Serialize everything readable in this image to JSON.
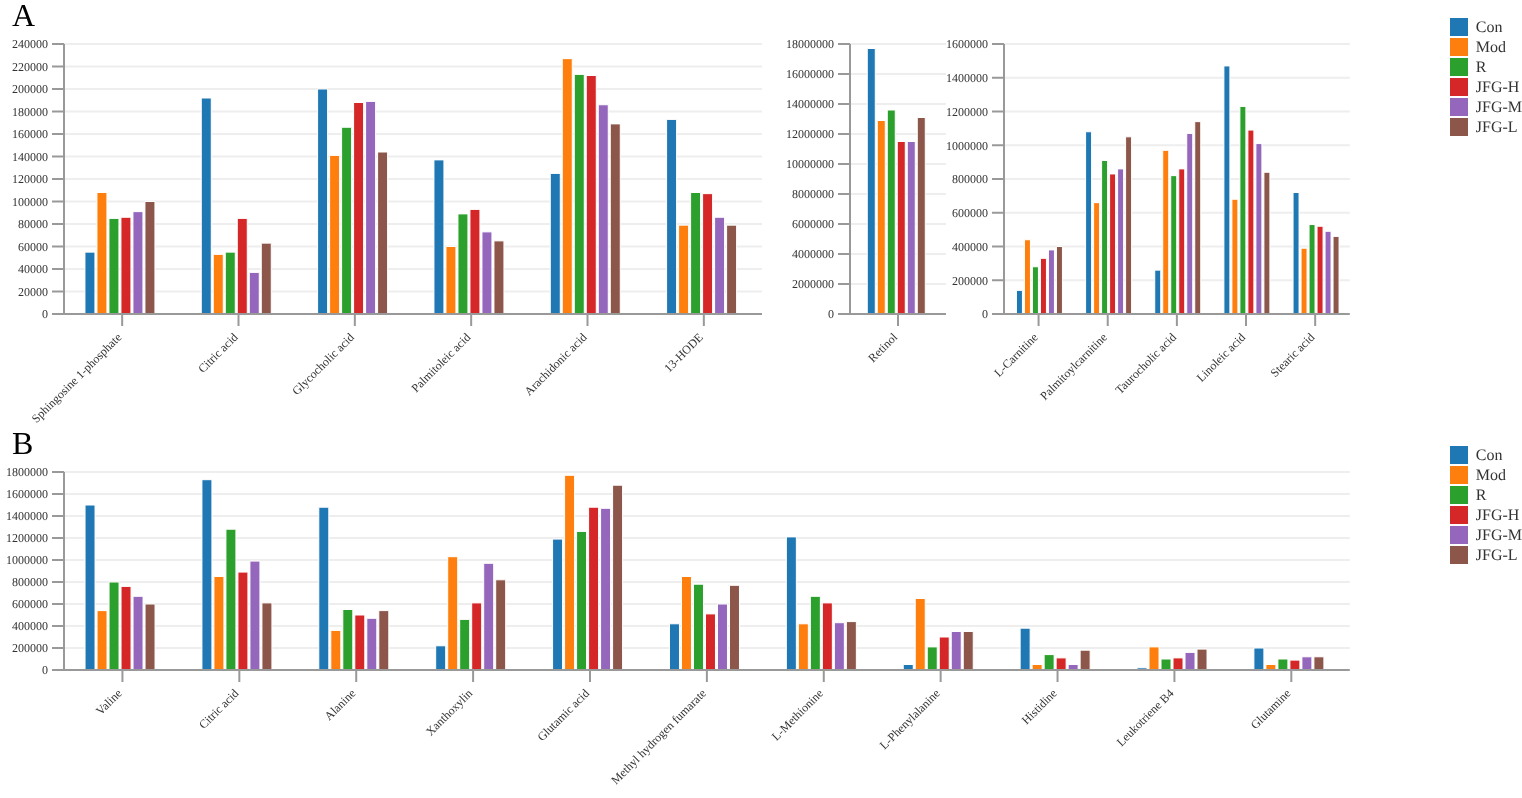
{
  "chart_data": [
    {
      "type": "bar",
      "title": "A",
      "categories": [
        "Sphingosine 1-phosphate",
        "Citric acid",
        "Glycocholic acid",
        "Palmitoleic acid",
        "Arachidonic acid",
        "13-HODE"
      ],
      "ylim": [
        0,
        240000
      ],
      "yticks": [
        0,
        20000,
        40000,
        60000,
        80000,
        100000,
        120000,
        140000,
        160000,
        180000,
        200000,
        220000,
        240000
      ],
      "grid": "y",
      "legend": false,
      "series": [
        {
          "color": "#1f77b4",
          "values": [
            55000,
            192000,
            200000,
            137000,
            125000,
            173000
          ]
        },
        {
          "color": "#ff7f0e",
          "values": [
            108000,
            53000,
            141000,
            60000,
            227000,
            79000
          ]
        },
        {
          "color": "#2ca02c",
          "values": [
            85000,
            55000,
            166000,
            89000,
            213000,
            108000
          ]
        },
        {
          "color": "#d62728",
          "values": [
            86000,
            85000,
            188000,
            93000,
            212000,
            107000
          ]
        },
        {
          "color": "#9467bd",
          "values": [
            91000,
            37000,
            189000,
            73000,
            186000,
            86000
          ]
        },
        {
          "color": "#8c564b",
          "values": [
            100000,
            63000,
            144000,
            65000,
            169000,
            79000
          ]
        }
      ]
    },
    {
      "type": "bar",
      "categories": [
        "Retinol"
      ],
      "ylim": [
        0,
        18000000
      ],
      "yticks": [
        0,
        2000000,
        4000000,
        6000000,
        8000000,
        10000000,
        12000000,
        14000000,
        16000000,
        18000000
      ],
      "grid": "y",
      "legend": false,
      "series": [
        {
          "color": "#1f77b4",
          "values": [
            17700000
          ]
        },
        {
          "color": "#ff7f0e",
          "values": [
            12900000
          ]
        },
        {
          "color": "#2ca02c",
          "values": [
            13600000
          ]
        },
        {
          "color": "#d62728",
          "values": [
            11500000
          ]
        },
        {
          "color": "#9467bd",
          "values": [
            11500000
          ]
        },
        {
          "color": "#8c564b",
          "values": [
            13100000
          ]
        }
      ]
    },
    {
      "type": "bar",
      "categories": [
        "L-Carnitine",
        "Palmitoylcarnitine",
        "Taurocholic acid",
        "Linoleic acid",
        "Stearic acid"
      ],
      "ylim": [
        0,
        1600000
      ],
      "yticks": [
        0,
        200000,
        400000,
        600000,
        800000,
        1000000,
        1200000,
        1400000,
        1600000
      ],
      "grid": "y",
      "legend": "right",
      "series": [
        {
          "name": "Con",
          "color": "#1f77b4",
          "values": [
            140000,
            1080000,
            260000,
            1470000,
            720000
          ]
        },
        {
          "name": "Mod",
          "color": "#ff7f0e",
          "values": [
            440000,
            660000,
            970000,
            680000,
            390000
          ]
        },
        {
          "name": "R",
          "color": "#2ca02c",
          "values": [
            280000,
            910000,
            820000,
            1230000,
            530000
          ]
        },
        {
          "name": "JFG-H",
          "color": "#d62728",
          "values": [
            330000,
            830000,
            860000,
            1090000,
            520000
          ]
        },
        {
          "name": "JFG-M",
          "color": "#9467bd",
          "values": [
            380000,
            860000,
            1070000,
            1010000,
            490000
          ]
        },
        {
          "name": "JFG-L",
          "color": "#8c564b",
          "values": [
            400000,
            1050000,
            1140000,
            840000,
            460000
          ]
        }
      ]
    },
    {
      "type": "bar",
      "title": "B",
      "categories": [
        "Valine",
        "Citric acid",
        "Alanine",
        "Xanthoxylin",
        "Glutamic acid",
        "Methyl hydrogen fumarate",
        "L-Methionine",
        "L-Phenylalanine",
        "Histidine",
        "Leukotriene B4",
        "Glutamine"
      ],
      "ylim": [
        0,
        1800000
      ],
      "yticks": [
        0,
        200000,
        400000,
        600000,
        800000,
        1000000,
        1200000,
        1400000,
        1600000,
        1800000
      ],
      "grid": "y",
      "legend": "right",
      "series": [
        {
          "name": "Con",
          "color": "#1f77b4",
          "values": [
            1500000,
            1730000,
            1480000,
            220000,
            1190000,
            420000,
            1210000,
            50000,
            380000,
            20000,
            200000
          ]
        },
        {
          "name": "Mod",
          "color": "#ff7f0e",
          "values": [
            540000,
            850000,
            360000,
            1030000,
            1770000,
            850000,
            420000,
            650000,
            50000,
            210000,
            50000
          ]
        },
        {
          "name": "R",
          "color": "#2ca02c",
          "values": [
            800000,
            1280000,
            550000,
            460000,
            1260000,
            780000,
            670000,
            210000,
            140000,
            100000,
            100000
          ]
        },
        {
          "name": "JFG-H",
          "color": "#d62728",
          "values": [
            760000,
            890000,
            500000,
            610000,
            1480000,
            510000,
            610000,
            300000,
            110000,
            110000,
            90000
          ]
        },
        {
          "name": "JFG-M",
          "color": "#9467bd",
          "values": [
            670000,
            990000,
            470000,
            970000,
            1470000,
            600000,
            430000,
            350000,
            50000,
            160000,
            120000
          ]
        },
        {
          "name": "JFG-L",
          "color": "#8c564b",
          "values": [
            600000,
            610000,
            540000,
            820000,
            1680000,
            770000,
            440000,
            350000,
            180000,
            190000,
            120000
          ]
        }
      ]
    }
  ]
}
